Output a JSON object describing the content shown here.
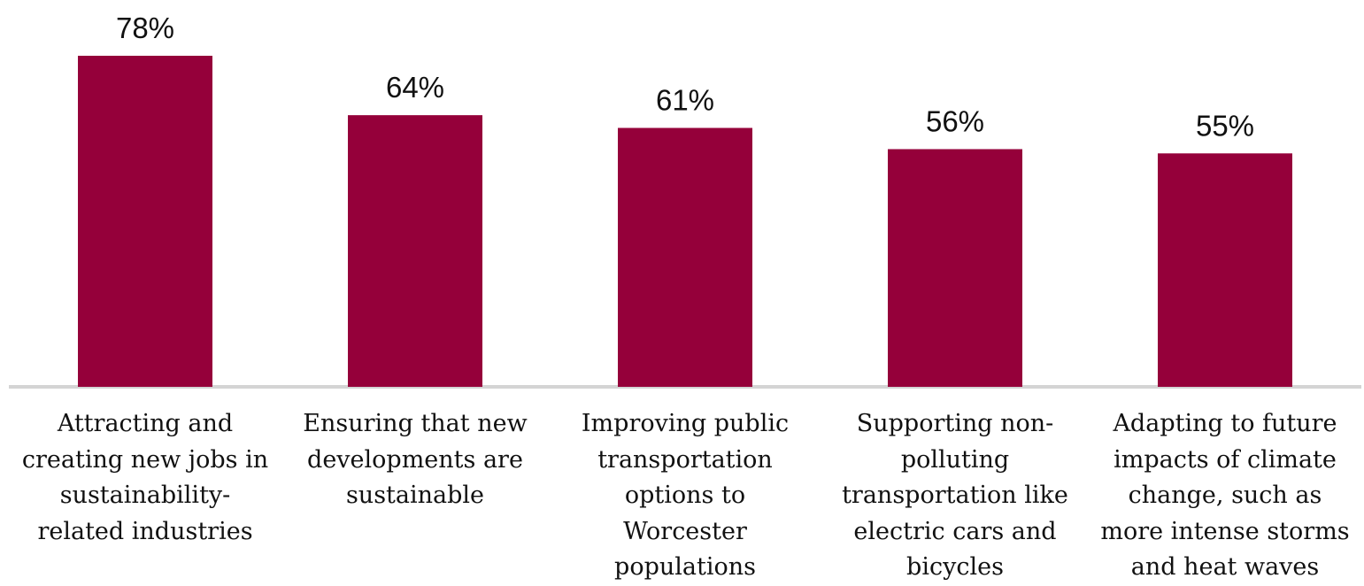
{
  "chart_data": {
    "type": "bar",
    "categories": [
      "Attracting and creating new jobs in sustainability-related industries",
      "Ensuring that new developments are sustainable",
      "Improving public transportation options to Worcester populations",
      "Supporting non-polluting transportation like electric cars and bicycles",
      "Adapting to future impacts of climate change, such as more intense storms and heat waves"
    ],
    "category_lines": [
      [
        "Attracting and",
        "creating new jobs in",
        "sustainability-",
        "related industries"
      ],
      [
        "Ensuring that new",
        "developments are",
        "sustainable"
      ],
      [
        "Improving public",
        "transportation",
        "options to",
        "Worcester",
        "populations"
      ],
      [
        "Supporting non-",
        "polluting",
        "transportation like",
        "electric cars and",
        "bicycles"
      ],
      [
        "Adapting to future",
        "impacts of climate",
        "change, such as",
        "more intense storms",
        "and heat waves"
      ]
    ],
    "values": [
      78,
      64,
      61,
      56,
      55
    ],
    "value_labels": [
      "78%",
      "64%",
      "61%",
      "56%",
      "55%"
    ],
    "title": "",
    "xlabel": "",
    "ylabel": "",
    "ylim": [
      0,
      78
    ],
    "grid": false,
    "legend": "none",
    "bar_color": "#95003A",
    "baseline_color": "#D4D4D4",
    "text_color": "#111111"
  }
}
